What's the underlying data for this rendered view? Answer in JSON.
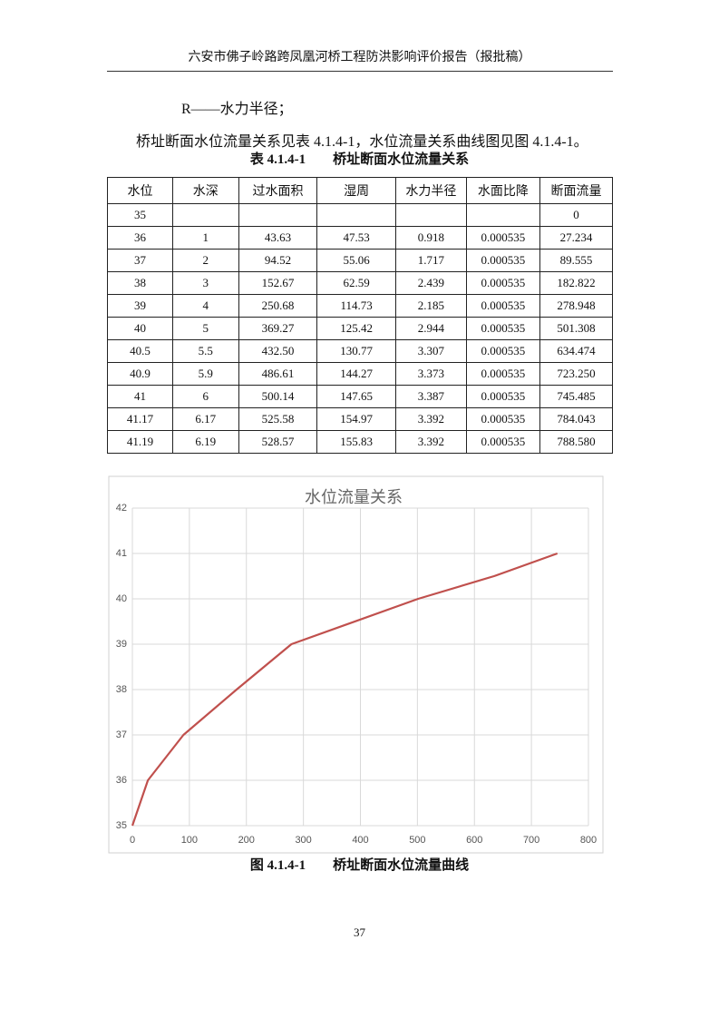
{
  "header": {
    "title": "六安市佛子岭路跨凤凰河桥工程防洪影响评价报告（报批稿）"
  },
  "text": {
    "line1": "R——水力半径；",
    "line2": "桥址断面水位流量关系见表 4.1.4-1，水位流量关系曲线图见图 4.1.4-1。"
  },
  "table": {
    "title": "表 4.1.4-1　　桥址断面水位流量关系",
    "columns": [
      "水位",
      "水深",
      "过水面积",
      "湿周",
      "水力半径",
      "水面比降",
      "断面流量"
    ],
    "rows": [
      [
        "35",
        null,
        null,
        null,
        null,
        null,
        "0"
      ],
      [
        "36",
        "1",
        "43.63",
        "47.53",
        "0.918",
        "0.000535",
        "27.234"
      ],
      [
        "37",
        "2",
        "94.52",
        "55.06",
        "1.717",
        "0.000535",
        "89.555"
      ],
      [
        "38",
        "3",
        "152.67",
        "62.59",
        "2.439",
        "0.000535",
        "182.822"
      ],
      [
        "39",
        "4",
        "250.68",
        "114.73",
        "2.185",
        "0.000535",
        "278.948"
      ],
      [
        "40",
        "5",
        "369.27",
        "125.42",
        "2.944",
        "0.000535",
        "501.308"
      ],
      [
        "40.5",
        "5.5",
        "432.50",
        "130.77",
        "3.307",
        "0.000535",
        "634.474"
      ],
      [
        "40.9",
        "5.9",
        "486.61",
        "144.27",
        "3.373",
        "0.000535",
        "723.250"
      ],
      [
        "41",
        "6",
        "500.14",
        "147.65",
        "3.387",
        "0.000535",
        "745.485"
      ],
      [
        "41.17",
        "6.17",
        "525.58",
        "154.97",
        "3.392",
        "0.000535",
        "784.043"
      ],
      [
        "41.19",
        "6.19",
        "528.57",
        "155.83",
        "3.392",
        "0.000535",
        "788.580"
      ]
    ]
  },
  "chart_data": {
    "type": "line",
    "title": "水位流量关系",
    "x": [
      0,
      27.234,
      89.555,
      182.822,
      278.948,
      501.308,
      634.474,
      723.25,
      745.485
    ],
    "values": [
      35,
      36,
      37,
      38,
      39,
      40,
      40.5,
      40.9,
      41
    ],
    "color": "#c0504d",
    "xlim": [
      0,
      800
    ],
    "xticks": [
      0,
      100,
      200,
      300,
      400,
      500,
      600,
      700,
      800
    ],
    "ylim": [
      35,
      42
    ],
    "yticks": [
      35,
      36,
      37,
      38,
      39,
      40,
      41,
      42
    ],
    "grid": true
  },
  "caption": "图 4.1.4-1　　桥址断面水位流量曲线",
  "page_number": "37"
}
